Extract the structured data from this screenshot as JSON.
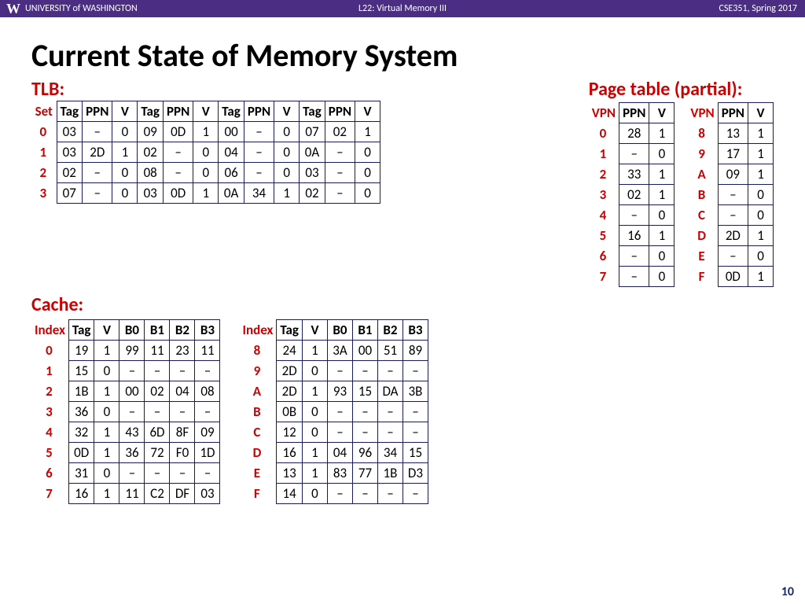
{
  "topbar": {
    "university": "UNIVERSITY of WASHINGTON",
    "lecture": "L22: Virtual Memory III",
    "course": "CSE351, Spring 2017"
  },
  "title": "Current State of Memory System",
  "slide_number": "10",
  "colors": {
    "purple": "#4b2e83",
    "accent_red": "#cc0000",
    "border": "#1b1b5a",
    "text": "#000000",
    "bg": "#ffffff"
  },
  "tlb": {
    "label": "TLB:",
    "row_header": "Set",
    "group_headers": [
      "Tag",
      "PPN",
      "V"
    ],
    "groups": 4,
    "sets": [
      "0",
      "1",
      "2",
      "3"
    ],
    "rows": [
      [
        [
          "03",
          "–",
          "0"
        ],
        [
          "09",
          "0D",
          "1"
        ],
        [
          "00",
          "–",
          "0"
        ],
        [
          "07",
          "02",
          "1"
        ]
      ],
      [
        [
          "03",
          "2D",
          "1"
        ],
        [
          "02",
          "–",
          "0"
        ],
        [
          "04",
          "–",
          "0"
        ],
        [
          "0A",
          "–",
          "0"
        ]
      ],
      [
        [
          "02",
          "–",
          "0"
        ],
        [
          "08",
          "–",
          "0"
        ],
        [
          "06",
          "–",
          "0"
        ],
        [
          "03",
          "–",
          "0"
        ]
      ],
      [
        [
          "07",
          "–",
          "0"
        ],
        [
          "03",
          "0D",
          "1"
        ],
        [
          "0A",
          "34",
          "1"
        ],
        [
          "02",
          "–",
          "0"
        ]
      ]
    ]
  },
  "page_table": {
    "label": "Page table (partial):",
    "row_header": "VPN",
    "col_headers": [
      "PPN",
      "V"
    ],
    "left": {
      "vpn": [
        "0",
        "1",
        "2",
        "3",
        "4",
        "5",
        "6",
        "7"
      ],
      "rows": [
        [
          "28",
          "1"
        ],
        [
          "–",
          "0"
        ],
        [
          "33",
          "1"
        ],
        [
          "02",
          "1"
        ],
        [
          "–",
          "0"
        ],
        [
          "16",
          "1"
        ],
        [
          "–",
          "0"
        ],
        [
          "–",
          "0"
        ]
      ]
    },
    "right": {
      "vpn": [
        "8",
        "9",
        "A",
        "B",
        "C",
        "D",
        "E",
        "F"
      ],
      "rows": [
        [
          "13",
          "1"
        ],
        [
          "17",
          "1"
        ],
        [
          "09",
          "1"
        ],
        [
          "–",
          "0"
        ],
        [
          "–",
          "0"
        ],
        [
          "2D",
          "1"
        ],
        [
          "–",
          "0"
        ],
        [
          "0D",
          "1"
        ]
      ]
    }
  },
  "cache": {
    "label": "Cache:",
    "row_header": "Index",
    "col_headers": [
      "Tag",
      "V",
      "B0",
      "B1",
      "B2",
      "B3"
    ],
    "left": {
      "idx": [
        "0",
        "1",
        "2",
        "3",
        "4",
        "5",
        "6",
        "7"
      ],
      "rows": [
        [
          "19",
          "1",
          "99",
          "11",
          "23",
          "11"
        ],
        [
          "15",
          "0",
          "–",
          "–",
          "–",
          "–"
        ],
        [
          "1B",
          "1",
          "00",
          "02",
          "04",
          "08"
        ],
        [
          "36",
          "0",
          "–",
          "–",
          "–",
          "–"
        ],
        [
          "32",
          "1",
          "43",
          "6D",
          "8F",
          "09"
        ],
        [
          "0D",
          "1",
          "36",
          "72",
          "F0",
          "1D"
        ],
        [
          "31",
          "0",
          "–",
          "–",
          "–",
          "–"
        ],
        [
          "16",
          "1",
          "11",
          "C2",
          "DF",
          "03"
        ]
      ]
    },
    "right": {
      "idx": [
        "8",
        "9",
        "A",
        "B",
        "C",
        "D",
        "E",
        "F"
      ],
      "rows": [
        [
          "24",
          "1",
          "3A",
          "00",
          "51",
          "89"
        ],
        [
          "2D",
          "0",
          "–",
          "–",
          "–",
          "–"
        ],
        [
          "2D",
          "1",
          "93",
          "15",
          "DA",
          "3B"
        ],
        [
          "0B",
          "0",
          "–",
          "–",
          "–",
          "–"
        ],
        [
          "12",
          "0",
          "–",
          "–",
          "–",
          "–"
        ],
        [
          "16",
          "1",
          "04",
          "96",
          "34",
          "15"
        ],
        [
          "13",
          "1",
          "83",
          "77",
          "1B",
          "D3"
        ],
        [
          "14",
          "0",
          "–",
          "–",
          "–",
          "–"
        ]
      ]
    }
  }
}
